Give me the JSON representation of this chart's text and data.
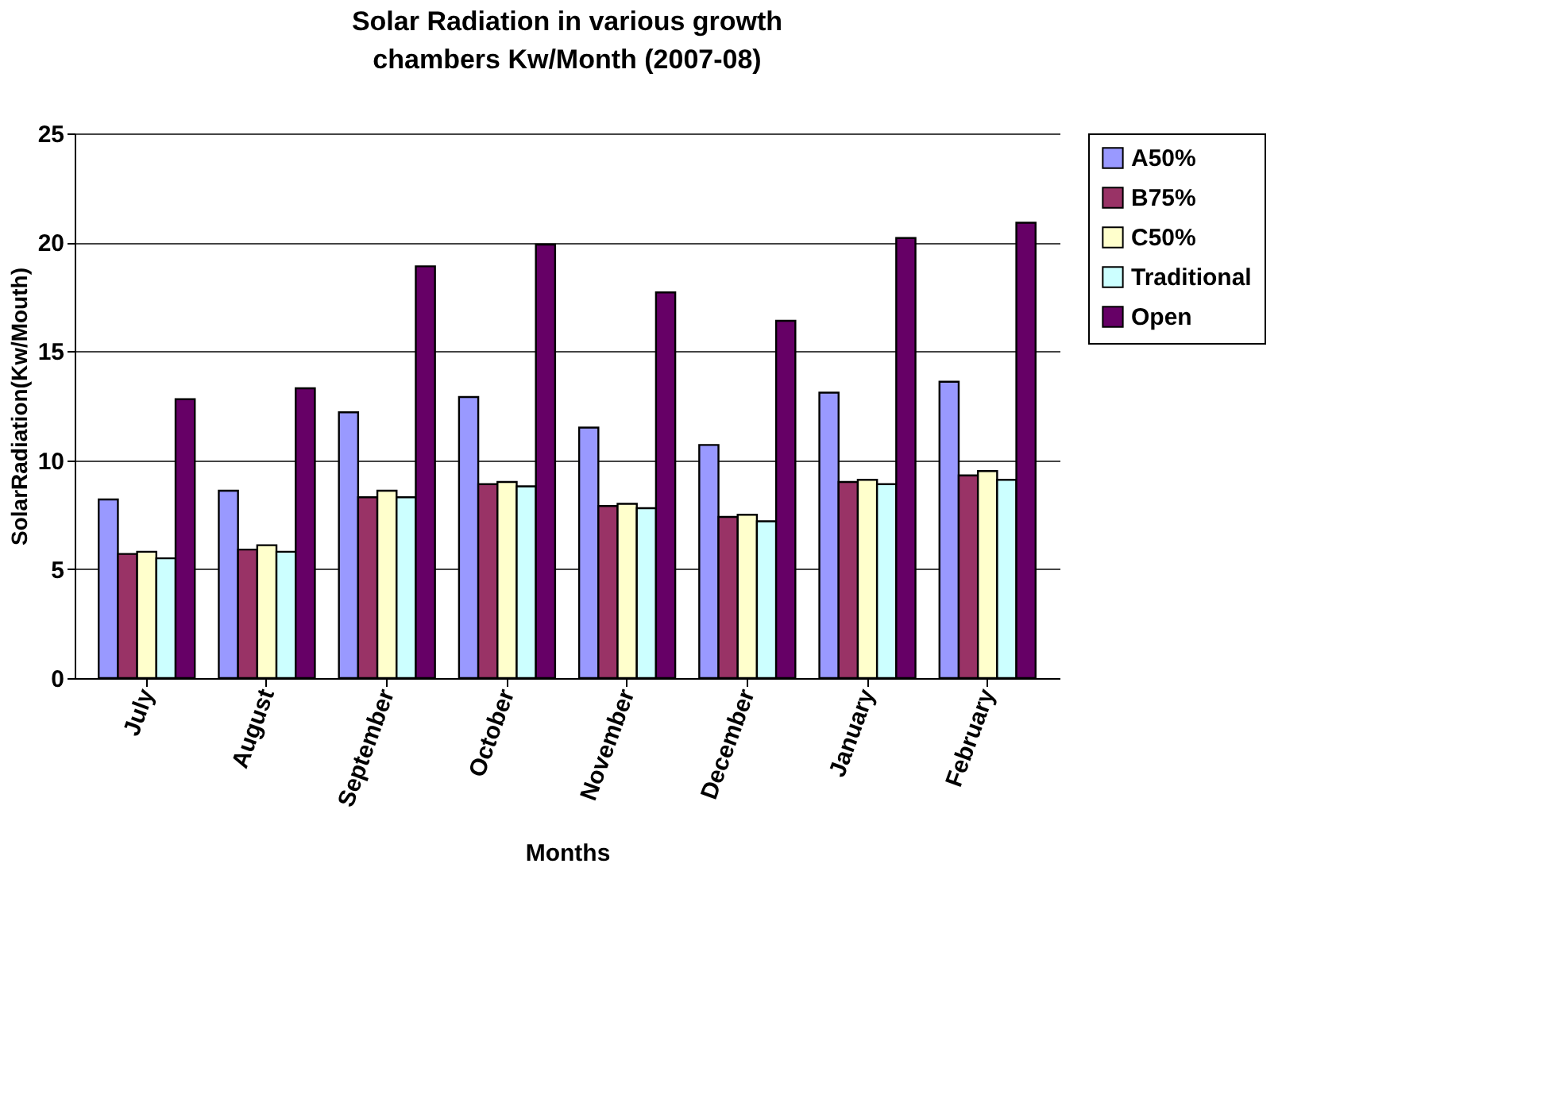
{
  "chart_data": {
    "type": "bar",
    "title": "Solar Radiation in various growth chambers Kw/Month (2007-08)",
    "xlabel": "Months",
    "ylabel": "SolarRadiation(Kw/Mouth)",
    "categories": [
      "July",
      "August",
      "September",
      "October",
      "November",
      "December",
      "January",
      "February"
    ],
    "series": [
      {
        "name": "A50%",
        "color": "#9999ff",
        "values": [
          8.2,
          8.6,
          12.2,
          12.9,
          11.5,
          10.7,
          13.1,
          13.6
        ]
      },
      {
        "name": "B75%",
        "color": "#993366",
        "values": [
          5.7,
          5.9,
          8.3,
          8.9,
          7.9,
          7.4,
          9.0,
          9.3
        ]
      },
      {
        "name": "C50%",
        "color": "#ffffcc",
        "values": [
          5.8,
          6.1,
          8.6,
          9.0,
          8.0,
          7.5,
          9.1,
          9.5
        ]
      },
      {
        "name": "Traditional",
        "color": "#ccffff",
        "values": [
          5.5,
          5.8,
          8.3,
          8.8,
          7.8,
          7.2,
          8.9,
          9.1
        ]
      },
      {
        "name": "Open",
        "color": "#660066",
        "values": [
          12.8,
          13.3,
          18.9,
          19.9,
          17.7,
          16.4,
          20.2,
          20.9
        ]
      }
    ],
    "ylim": [
      0,
      25
    ],
    "yticks": [
      0,
      5,
      10,
      15,
      20,
      25
    ],
    "grid": "y",
    "legend": "right"
  }
}
